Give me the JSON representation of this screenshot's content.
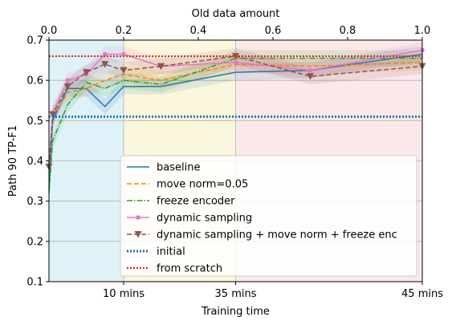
{
  "chart_data": {
    "type": "line",
    "title": "",
    "xlabel": "Training time",
    "ylabel": "Path 90 TP-F1",
    "x_top_label": "Old data amount",
    "xlim": [
      0,
      1
    ],
    "ylim": [
      0.1,
      0.7
    ],
    "x_bottom_ticks": [
      {
        "value": 0.2,
        "label": "10 mins"
      },
      {
        "value": 0.5,
        "label": "35 mins"
      },
      {
        "value": 1.0,
        "label": "45 mins"
      }
    ],
    "x_top_ticks": [
      {
        "value": 0.0,
        "label": "0.0"
      },
      {
        "value": 0.2,
        "label": "0.2"
      },
      {
        "value": 0.4,
        "label": "0.4"
      },
      {
        "value": 0.6,
        "label": "0.6"
      },
      {
        "value": 0.8,
        "label": "0.8"
      },
      {
        "value": 1.0,
        "label": "1.0"
      }
    ],
    "y_ticks": [
      {
        "value": 0.1,
        "label": "0.1"
      },
      {
        "value": 0.2,
        "label": "0.2"
      },
      {
        "value": 0.3,
        "label": "0.3"
      },
      {
        "value": 0.4,
        "label": "0.4"
      },
      {
        "value": 0.5,
        "label": "0.5"
      },
      {
        "value": 0.6,
        "label": "0.6"
      },
      {
        "value": 0.7,
        "label": "0.7"
      }
    ],
    "grid": true,
    "legend_position": "lower-right",
    "background_bands": [
      {
        "x0": 0.0,
        "x1": 0.2,
        "color": "#dff2f7"
      },
      {
        "x0": 0.2,
        "x1": 0.5,
        "color": "#fbf7dc"
      },
      {
        "x0": 0.5,
        "x1": 1.0,
        "color": "#fbe9e9"
      }
    ],
    "series": [
      {
        "name": "baseline",
        "color": "#1f77b4",
        "style": "solid",
        "marker": "none",
        "x": [
          0.0,
          0.01,
          0.05,
          0.1,
          0.15,
          0.2,
          0.3,
          0.5,
          0.7,
          1.0
        ],
        "y": [
          0.33,
          0.5,
          0.58,
          0.58,
          0.535,
          0.585,
          0.585,
          0.62,
          0.625,
          0.665
        ]
      },
      {
        "name": "move norm=0.05",
        "color": "#ff7f0e",
        "style": "dashed",
        "marker": "none",
        "x": [
          0.0,
          0.01,
          0.05,
          0.1,
          0.15,
          0.2,
          0.3,
          0.5,
          0.7,
          1.0
        ],
        "y": [
          0.38,
          0.51,
          0.57,
          0.58,
          0.6,
          0.615,
          0.6,
          0.64,
          0.635,
          0.645
        ]
      },
      {
        "name": "freeze encoder",
        "color": "#2ca02c",
        "style": "dashdot",
        "marker": "none",
        "x": [
          0.0,
          0.01,
          0.05,
          0.1,
          0.15,
          0.2,
          0.3,
          0.5,
          0.7,
          1.0
        ],
        "y": [
          0.32,
          0.45,
          0.54,
          0.595,
          0.58,
          0.6,
          0.59,
          0.655,
          0.655,
          0.655
        ]
      },
      {
        "name": "dynamic sampling",
        "color": "#e377c2",
        "style": "solid",
        "marker": "dot",
        "x": [
          0.0,
          0.01,
          0.05,
          0.1,
          0.15,
          0.2,
          0.3,
          0.5,
          0.7,
          1.0
        ],
        "y": [
          0.39,
          0.52,
          0.6,
          0.615,
          0.665,
          0.665,
          0.635,
          0.645,
          0.625,
          0.675
        ]
      },
      {
        "name": "dynamic sampling + move norm + freeze enc",
        "color": "#8c564b",
        "style": "dashed",
        "marker": "triangle-down",
        "x": [
          0.0,
          0.01,
          0.05,
          0.1,
          0.15,
          0.2,
          0.3,
          0.5,
          0.7,
          1.0
        ],
        "y": [
          0.385,
          0.515,
          0.585,
          0.62,
          0.64,
          0.625,
          0.635,
          0.66,
          0.61,
          0.635
        ]
      },
      {
        "name": "initial",
        "color": "#1f77b4",
        "style": "dotted",
        "marker": "none",
        "width": 3,
        "x": [
          0.0,
          1.0
        ],
        "y": [
          0.51,
          0.51
        ]
      },
      {
        "name": "from scratch",
        "color": "#d62728",
        "style": "dotted",
        "marker": "none",
        "width": 2.2,
        "x": [
          0.0,
          1.0
        ],
        "y": [
          0.66,
          0.66
        ]
      }
    ]
  }
}
